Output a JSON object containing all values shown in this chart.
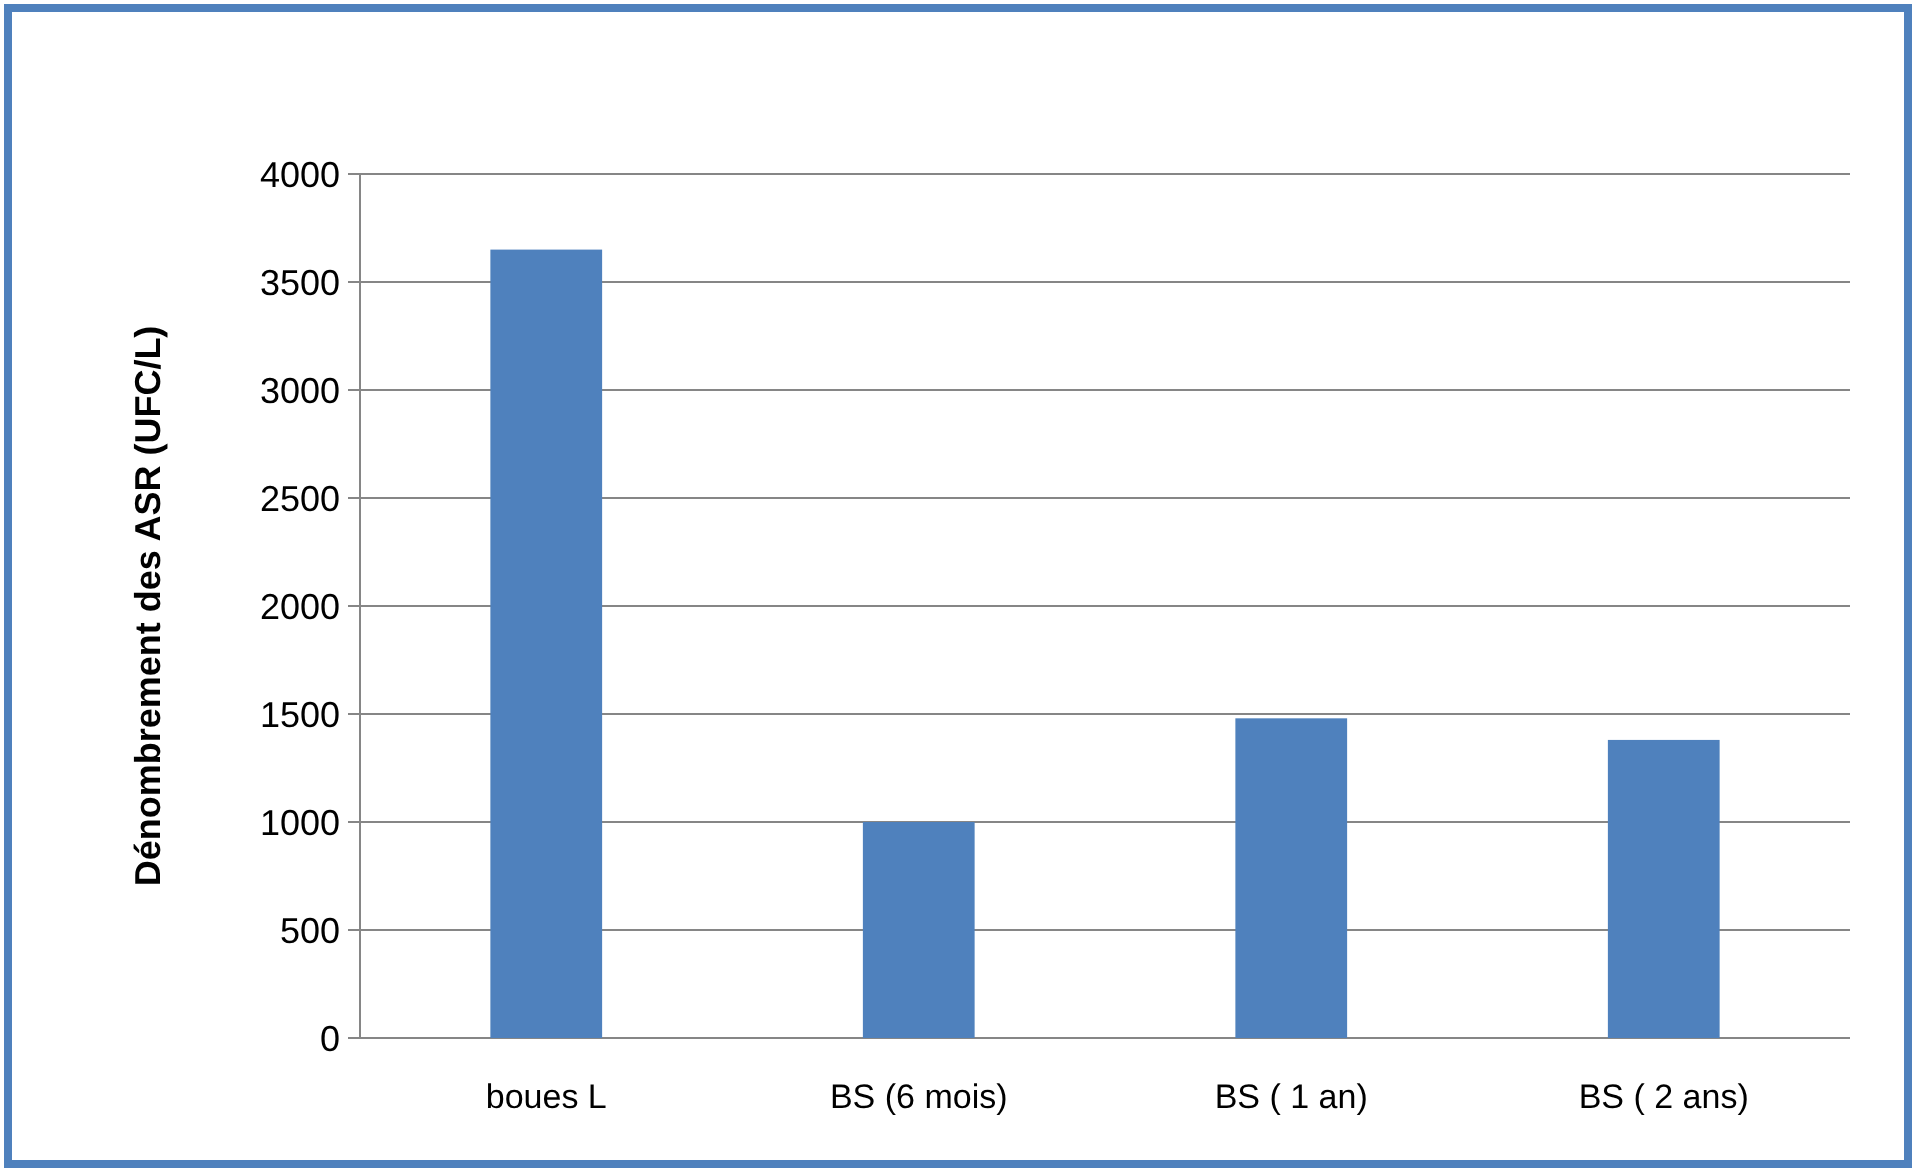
{
  "chart_data": {
    "type": "bar",
    "ylabel": "Dénombrement des ASR (UFC/L)",
    "categories": [
      "boues L",
      "BS (6 mois)",
      "BS ( 1 an)",
      "BS ( 2 ans)"
    ],
    "values": [
      3650,
      1000,
      1480,
      1380
    ],
    "color": "#4f81bd",
    "ylim": [
      0,
      4000
    ],
    "yticks": [
      0,
      500,
      1000,
      1500,
      2000,
      2500,
      3000,
      3500,
      4000
    ],
    "grid": "y"
  }
}
